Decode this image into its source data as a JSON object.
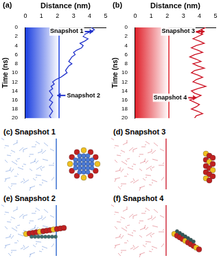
{
  "chart_data": [
    {
      "type": "line",
      "title": "(a)",
      "x_label": "Distance (nm)",
      "y_label": "Time (ns)",
      "xlim": [
        0,
        5
      ],
      "xticks": [
        0,
        1,
        2,
        3,
        4,
        5
      ],
      "ylim": [
        0,
        20
      ],
      "yticks": [
        0,
        2,
        4,
        6,
        8,
        10,
        12,
        14,
        16,
        18,
        20
      ],
      "grid": false,
      "color": "#2233cc",
      "region": {
        "from": 0,
        "to": 2.1,
        "color": "#1a3ee0"
      },
      "x": [
        4.1,
        4.3,
        4.0,
        3.7,
        3.6,
        3.9,
        3.7,
        3.4,
        3.6,
        3.5,
        3.2,
        3.0,
        3.1,
        2.9,
        2.8,
        2.7,
        2.9,
        2.7,
        2.6,
        2.5,
        2.6,
        2.4,
        2.2,
        1.9,
        1.7,
        1.8,
        1.6,
        1.7,
        1.5,
        1.6,
        1.7,
        1.6,
        1.5,
        1.7,
        1.6,
        1.5,
        1.6,
        1.7,
        1.6,
        1.5,
        1.6
      ],
      "y": [
        0,
        0.5,
        1,
        1.5,
        2,
        2.5,
        3,
        3.5,
        4,
        4.5,
        5,
        5.5,
        6,
        6.5,
        7,
        7.5,
        8,
        8.5,
        9,
        9.5,
        10,
        10.5,
        11,
        11.5,
        12,
        12.5,
        13,
        13.5,
        14,
        14.5,
        15,
        15.5,
        16,
        16.5,
        17,
        17.5,
        18,
        18.5,
        19,
        19.5,
        20
      ],
      "annotations": [
        {
          "text": "Snapshot 1",
          "x": 4.3,
          "y": 0.5
        },
        {
          "text": "Snapshot 2",
          "x": 1.9,
          "y": 15
        }
      ]
    },
    {
      "type": "line",
      "title": "(b)",
      "x_label": "Distance (nm)",
      "y_label": "Time (ns)",
      "xlim": [
        0,
        5
      ],
      "xticks": [
        0,
        1,
        2,
        3,
        4,
        5
      ],
      "ylim": [
        0,
        20
      ],
      "yticks": [
        0,
        2,
        4,
        6,
        8,
        10,
        12,
        14,
        16,
        18,
        20
      ],
      "grid": false,
      "color": "#cc1122",
      "region": {
        "from": 0,
        "to": 2.1,
        "color": "#e0202a"
      },
      "x": [
        4.4,
        4.1,
        3.8,
        4.2,
        3.9,
        3.6,
        4.0,
        4.3,
        3.8,
        3.5,
        3.9,
        4.2,
        3.7,
        3.4,
        3.8,
        4.1,
        3.6,
        3.9,
        4.3,
        3.7,
        3.5,
        3.9,
        4.2,
        3.8,
        3.6,
        4.0,
        4.4,
        3.9,
        3.5,
        3.7,
        4.1,
        3.8,
        3.4,
        3.7,
        4.0,
        3.8,
        3.5,
        3.9,
        4.2,
        3.8,
        3.7
      ],
      "y": [
        0,
        0.5,
        1,
        1.5,
        2,
        2.5,
        3,
        3.5,
        4,
        4.5,
        5,
        5.5,
        6,
        6.5,
        7,
        7.5,
        8,
        8.5,
        9,
        9.5,
        10,
        10.5,
        11,
        11.5,
        12,
        12.5,
        13,
        13.5,
        14,
        14.5,
        15,
        15.5,
        16,
        16.5,
        17,
        17.5,
        18,
        18.5,
        19,
        19.5,
        20
      ],
      "annotations": [
        {
          "text": "Snapshot 3",
          "x": 4.4,
          "y": 0.3
        },
        {
          "text": "Snapshot 4",
          "x": 3.9,
          "y": 15.5
        }
      ]
    }
  ],
  "snapshots": [
    {
      "label": "(c)",
      "title": "Snapshot 1",
      "color": "#3a6fd0"
    },
    {
      "label": "(d)",
      "title": "Snapshot 3",
      "color": "#d03040"
    },
    {
      "label": "(e)",
      "title": "Snapshot 2",
      "color": "#3a6fd0"
    },
    {
      "label": "(f)",
      "title": "Snapshot 4",
      "color": "#d03040"
    }
  ]
}
